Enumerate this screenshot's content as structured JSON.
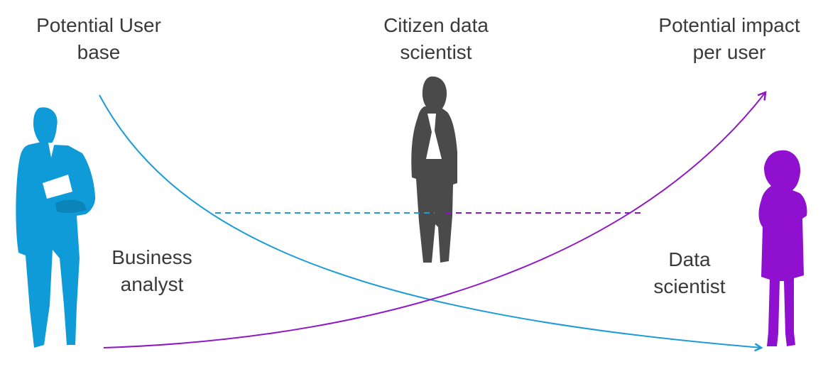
{
  "labels": {
    "user_base": [
      "Potential User",
      "base"
    ],
    "citizen": [
      "Citizen data",
      "scientist"
    ],
    "impact": [
      "Potential impact",
      "per user"
    ],
    "business": [
      "Business",
      "analyst"
    ],
    "data_scientist": [
      "Data",
      "scientist"
    ]
  },
  "colors": {
    "user_base_curve": "#1b9bd7",
    "impact_curve": "#8f17c8",
    "business_analyst_figure": "#0f9bd8",
    "citizen_figure": "#4a4a4a",
    "data_scientist_figure": "#8f10cf",
    "text": "#3a3a3a"
  },
  "icons": {
    "business_analyst": "businessman-icon",
    "citizen_data_scientist": "businesswoman-icon",
    "data_scientist": "woman-icon"
  }
}
